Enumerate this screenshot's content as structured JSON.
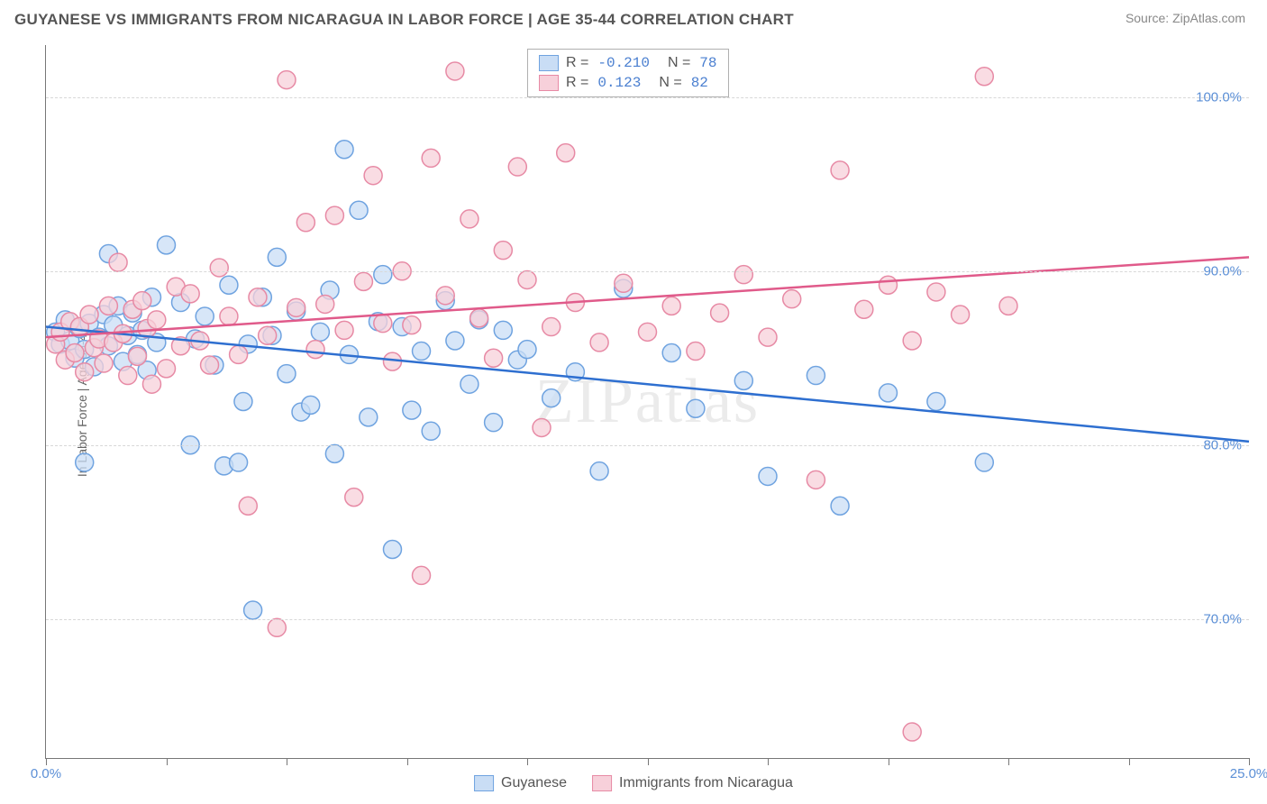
{
  "header": {
    "title": "GUYANESE VS IMMIGRANTS FROM NICARAGUA IN LABOR FORCE | AGE 35-44 CORRELATION CHART",
    "source": "Source: ZipAtlas.com"
  },
  "chart": {
    "type": "scatter",
    "ylabel": "In Labor Force | Age 35-44",
    "watermark": "ZIPatlas",
    "background_color": "#ffffff",
    "grid_color": "#d8d8d8",
    "axis_color": "#777777",
    "label_color": "#5b8fd6",
    "text_color": "#666666",
    "marker_radius": 10,
    "marker_stroke_width": 1.5,
    "line_width": 2.5,
    "xlim": [
      0,
      25
    ],
    "ylim": [
      62,
      103
    ],
    "xticks": [
      0,
      2.5,
      5,
      7.5,
      10,
      12.5,
      15,
      17.5,
      20,
      22.5,
      25
    ],
    "xtick_labels": {
      "0": "0.0%",
      "25": "25.0%"
    },
    "yticks": [
      70,
      80,
      90,
      100
    ],
    "ytick_labels": {
      "70": "70.0%",
      "80": "80.0%",
      "90": "90.0%",
      "100": "100.0%"
    },
    "series": [
      {
        "name": "Guyanese",
        "fill": "#c9ddf5",
        "stroke": "#6fa3e0",
        "line_color": "#2e6fd0",
        "R": "-0.210",
        "N": "78",
        "trend": {
          "x1": 0,
          "y1": 86.8,
          "x2": 25,
          "y2": 80.2
        },
        "points": [
          [
            0.2,
            86.5
          ],
          [
            0.3,
            85.8
          ],
          [
            0.4,
            87.2
          ],
          [
            0.5,
            86.0
          ],
          [
            0.6,
            85.0
          ],
          [
            0.7,
            86.7
          ],
          [
            0.8,
            85.5
          ],
          [
            0.9,
            87.0
          ],
          [
            1.0,
            84.5
          ],
          [
            1.1,
            86.2
          ],
          [
            1.2,
            87.5
          ],
          [
            1.3,
            85.7
          ],
          [
            1.4,
            86.9
          ],
          [
            1.5,
            88.0
          ],
          [
            1.6,
            84.8
          ],
          [
            1.7,
            86.3
          ],
          [
            1.8,
            87.6
          ],
          [
            1.9,
            85.2
          ],
          [
            2.0,
            86.6
          ],
          [
            2.1,
            84.3
          ],
          [
            2.2,
            88.5
          ],
          [
            2.3,
            85.9
          ],
          [
            2.5,
            91.5
          ],
          [
            2.8,
            88.2
          ],
          [
            3.0,
            80.0
          ],
          [
            3.1,
            86.1
          ],
          [
            3.3,
            87.4
          ],
          [
            3.5,
            84.6
          ],
          [
            3.7,
            78.8
          ],
          [
            3.8,
            89.2
          ],
          [
            4.0,
            79.0
          ],
          [
            4.1,
            82.5
          ],
          [
            4.2,
            85.8
          ],
          [
            4.3,
            70.5
          ],
          [
            4.5,
            88.5
          ],
          [
            4.7,
            86.3
          ],
          [
            4.8,
            90.8
          ],
          [
            5.0,
            84.1
          ],
          [
            5.2,
            87.7
          ],
          [
            5.3,
            81.9
          ],
          [
            5.5,
            82.3
          ],
          [
            5.7,
            86.5
          ],
          [
            5.9,
            88.9
          ],
          [
            6.0,
            79.5
          ],
          [
            6.2,
            97.0
          ],
          [
            6.3,
            85.2
          ],
          [
            6.5,
            93.5
          ],
          [
            6.7,
            81.6
          ],
          [
            6.9,
            87.1
          ],
          [
            7.0,
            89.8
          ],
          [
            7.2,
            74.0
          ],
          [
            7.4,
            86.8
          ],
          [
            7.6,
            82.0
          ],
          [
            7.8,
            85.4
          ],
          [
            8.0,
            80.8
          ],
          [
            8.3,
            88.3
          ],
          [
            8.5,
            86.0
          ],
          [
            8.8,
            83.5
          ],
          [
            9.0,
            87.2
          ],
          [
            9.3,
            81.3
          ],
          [
            9.5,
            86.6
          ],
          [
            9.8,
            84.9
          ],
          [
            10.0,
            85.5
          ],
          [
            10.5,
            82.7
          ],
          [
            11.0,
            84.2
          ],
          [
            11.5,
            78.5
          ],
          [
            12.0,
            89.0
          ],
          [
            13.0,
            85.3
          ],
          [
            13.5,
            82.1
          ],
          [
            14.5,
            83.7
          ],
          [
            15.0,
            78.2
          ],
          [
            16.0,
            84.0
          ],
          [
            16.5,
            76.5
          ],
          [
            17.5,
            83.0
          ],
          [
            18.5,
            82.5
          ],
          [
            19.5,
            79.0
          ],
          [
            0.8,
            79.0
          ],
          [
            1.3,
            91.0
          ]
        ]
      },
      {
        "name": "Immigrants from Nicaragua",
        "fill": "#f7d0da",
        "stroke": "#e78aa5",
        "line_color": "#e05a8a",
        "R": "0.123",
        "N": "82",
        "trend": {
          "x1": 0,
          "y1": 86.2,
          "x2": 25,
          "y2": 90.8
        },
        "points": [
          [
            0.2,
            85.8
          ],
          [
            0.3,
            86.5
          ],
          [
            0.4,
            84.9
          ],
          [
            0.5,
            87.1
          ],
          [
            0.6,
            85.3
          ],
          [
            0.7,
            86.8
          ],
          [
            0.8,
            84.2
          ],
          [
            0.9,
            87.5
          ],
          [
            1.0,
            85.6
          ],
          [
            1.1,
            86.1
          ],
          [
            1.2,
            84.7
          ],
          [
            1.3,
            88.0
          ],
          [
            1.4,
            85.9
          ],
          [
            1.5,
            90.5
          ],
          [
            1.6,
            86.4
          ],
          [
            1.7,
            84.0
          ],
          [
            1.8,
            87.8
          ],
          [
            1.9,
            85.1
          ],
          [
            2.0,
            88.3
          ],
          [
            2.1,
            86.7
          ],
          [
            2.2,
            83.5
          ],
          [
            2.3,
            87.2
          ],
          [
            2.5,
            84.4
          ],
          [
            2.7,
            89.1
          ],
          [
            2.8,
            85.7
          ],
          [
            3.0,
            88.7
          ],
          [
            3.2,
            86.0
          ],
          [
            3.4,
            84.6
          ],
          [
            3.6,
            90.2
          ],
          [
            3.8,
            87.4
          ],
          [
            4.0,
            85.2
          ],
          [
            4.2,
            76.5
          ],
          [
            4.4,
            88.5
          ],
          [
            4.6,
            86.3
          ],
          [
            4.8,
            69.5
          ],
          [
            5.0,
            101.0
          ],
          [
            5.2,
            87.9
          ],
          [
            5.4,
            92.8
          ],
          [
            5.6,
            85.5
          ],
          [
            5.8,
            88.1
          ],
          [
            6.0,
            93.2
          ],
          [
            6.2,
            86.6
          ],
          [
            6.4,
            77.0
          ],
          [
            6.6,
            89.4
          ],
          [
            6.8,
            95.5
          ],
          [
            7.0,
            87.0
          ],
          [
            7.2,
            84.8
          ],
          [
            7.4,
            90.0
          ],
          [
            7.6,
            86.9
          ],
          [
            7.8,
            72.5
          ],
          [
            8.0,
            96.5
          ],
          [
            8.3,
            88.6
          ],
          [
            8.5,
            101.5
          ],
          [
            8.8,
            93.0
          ],
          [
            9.0,
            87.3
          ],
          [
            9.3,
            85.0
          ],
          [
            9.5,
            91.2
          ],
          [
            9.8,
            96.0
          ],
          [
            10.0,
            89.5
          ],
          [
            10.3,
            81.0
          ],
          [
            10.5,
            86.8
          ],
          [
            10.8,
            96.8
          ],
          [
            11.0,
            88.2
          ],
          [
            11.5,
            85.9
          ],
          [
            12.0,
            89.3
          ],
          [
            12.5,
            86.5
          ],
          [
            13.0,
            88.0
          ],
          [
            13.5,
            85.4
          ],
          [
            14.0,
            87.6
          ],
          [
            14.5,
            89.8
          ],
          [
            15.0,
            86.2
          ],
          [
            15.5,
            88.4
          ],
          [
            16.0,
            78.0
          ],
          [
            16.5,
            95.8
          ],
          [
            17.0,
            87.8
          ],
          [
            17.5,
            89.2
          ],
          [
            18.0,
            86.0
          ],
          [
            18.5,
            88.8
          ],
          [
            19.0,
            87.5
          ],
          [
            19.5,
            101.2
          ],
          [
            20.0,
            88.0
          ],
          [
            18.0,
            63.5
          ]
        ]
      }
    ],
    "correlation_box": {
      "r_label": "R =",
      "n_label": "N ="
    },
    "legend": {
      "items": [
        "Guyanese",
        "Immigrants from Nicaragua"
      ]
    }
  }
}
